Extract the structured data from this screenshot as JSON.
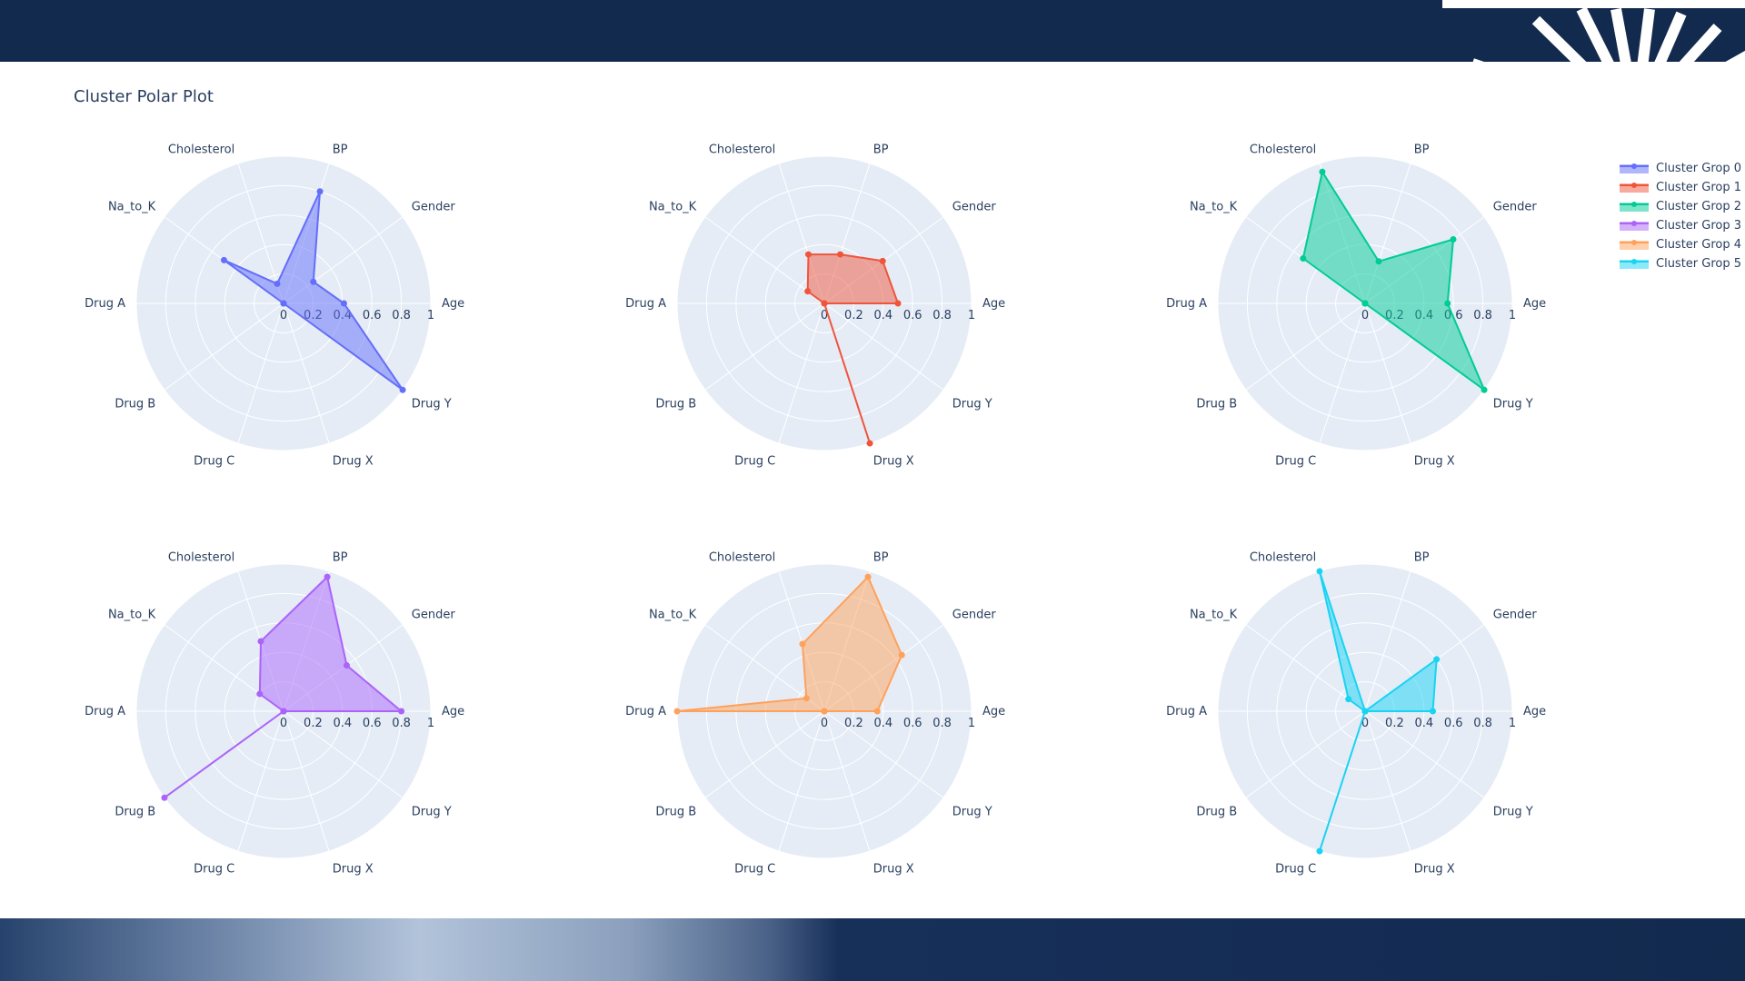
{
  "title": "Cluster Polar Plot",
  "chart_data": {
    "type": "radar",
    "axes": [
      "Age",
      "Gender",
      "BP",
      "Cholesterol",
      "Na_to_K",
      "Drug A",
      "Drug B",
      "Drug C",
      "Drug X",
      "Drug Y"
    ],
    "radial_range": [
      0,
      1
    ],
    "radial_ticks": [
      "0",
      "0.2",
      "0.4",
      "0.6",
      "0.8",
      "1"
    ],
    "grid": true,
    "legend_position": "top-right",
    "series": [
      {
        "name": "Cluster Grop 0",
        "color": "#636efa",
        "values": [
          0.41,
          0.25,
          0.8,
          0.14,
          0.5,
          0,
          0,
          0,
          0,
          1.0
        ]
      },
      {
        "name": "Cluster Grop 1",
        "color": "#ef553b",
        "values": [
          0.5,
          0.49,
          0.35,
          0.35,
          0.14,
          0,
          0,
          0,
          1.0,
          0
        ]
      },
      {
        "name": "Cluster Grop 2",
        "color": "#00cc96",
        "values": [
          0.56,
          0.74,
          0.3,
          0.94,
          0.52,
          0,
          0,
          0,
          0,
          1.0
        ]
      },
      {
        "name": "Cluster Grop 3",
        "color": "#ab63fa",
        "values": [
          0.8,
          0.53,
          0.96,
          0.5,
          0.2,
          0,
          1.0,
          0,
          0,
          0
        ]
      },
      {
        "name": "Cluster Grop 4",
        "color": "#ffa15a",
        "values": [
          0.36,
          0.65,
          0.96,
          0.48,
          0.15,
          1.0,
          0,
          0,
          0,
          0
        ]
      },
      {
        "name": "Cluster Grop 5",
        "color": "#19d3f3",
        "values": [
          0.46,
          0.6,
          0,
          1.0,
          0.14,
          0,
          0,
          1.0,
          0,
          0
        ]
      }
    ]
  }
}
